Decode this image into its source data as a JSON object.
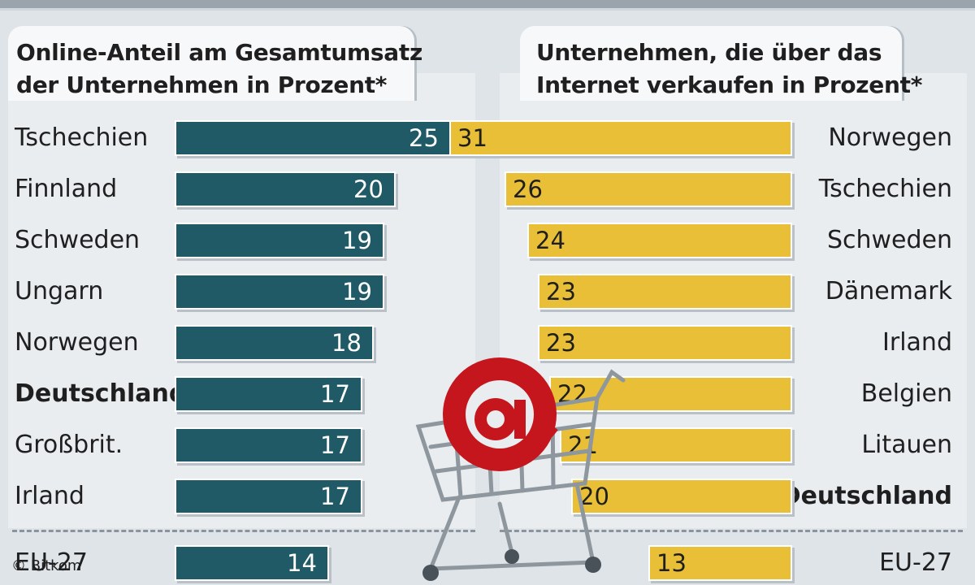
{
  "chart_data": [
    {
      "type": "bar",
      "orientation": "horizontal",
      "title": "Online-Anteil am Gesamtumsatz der Unternehmen in Prozent*",
      "title_lines": [
        "Online-Anteil am Gesamtumsatz",
        "der Unternehmen in Prozent*"
      ],
      "categories": [
        "Tschechien",
        "Finnland",
        "Schweden",
        "Ungarn",
        "Norwegen",
        "Deutschland",
        "Großbrit.",
        "Irland",
        "EU-27"
      ],
      "values": [
        25,
        20,
        19,
        19,
        18,
        17,
        17,
        17,
        14
      ],
      "highlight": [
        "Deutschland"
      ],
      "bar_color": "#1f5a66",
      "label_position": "left",
      "bar_direction": "left-to-right"
    },
    {
      "type": "bar",
      "orientation": "horizontal",
      "title": "Unternehmen, die über das Internet verkaufen in Prozent*",
      "title_lines": [
        "Unternehmen, die über das",
        "Internet verkaufen in Prozent*"
      ],
      "categories": [
        "Norwegen",
        "Tschechien",
        "Schweden",
        "Dänemark",
        "Irland",
        "Belgien",
        "Litauen",
        "Deutschland",
        "EU-27"
      ],
      "values": [
        31,
        26,
        24,
        23,
        23,
        22,
        21,
        20,
        13
      ],
      "highlight": [
        "Deutschland"
      ],
      "bar_color": "#e8bf36",
      "label_position": "right",
      "bar_direction": "right-to-left"
    }
  ],
  "copyright": "© Bitkom",
  "colors": {
    "background": "#dfe4e8",
    "teal": "#1f5a66",
    "gold": "#e8bf36"
  },
  "icons": [
    "gear-background-icon",
    "shopping-cart-icon",
    "at-sign-icon"
  ]
}
